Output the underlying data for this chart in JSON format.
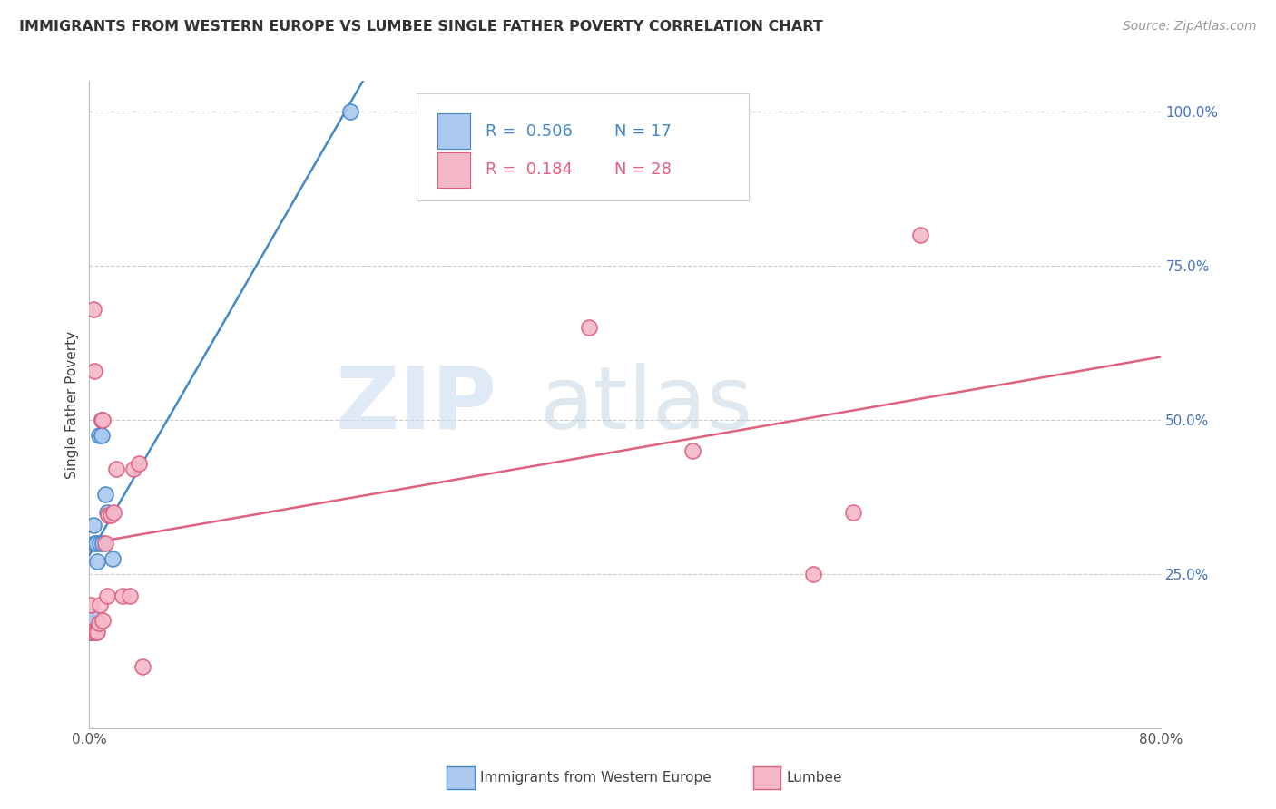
{
  "title": "IMMIGRANTS FROM WESTERN EUROPE VS LUMBEE SINGLE FATHER POVERTY CORRELATION CHART",
  "source": "Source: ZipAtlas.com",
  "ylabel": "Single Father Poverty",
  "legend_label1": "Immigrants from Western Europe",
  "legend_label2": "Lumbee",
  "R1": 0.506,
  "N1": 17,
  "R2": 0.184,
  "N2": 28,
  "color1": "#aac8f0",
  "color2": "#f5b8c8",
  "line_color1": "#4488cc",
  "line_color2": "#e06080",
  "xlim": [
    0.0,
    0.8
  ],
  "ylim": [
    0.0,
    1.05
  ],
  "yticks_right": [
    0.25,
    0.5,
    0.75,
    1.0
  ],
  "ytick_labels_right": [
    "25.0%",
    "50.0%",
    "75.0%",
    "100.0%"
  ],
  "watermark_zip": "ZIP",
  "watermark_atlas": "atlas",
  "blue_x": [
    0.001,
    0.001,
    0.002,
    0.002,
    0.003,
    0.004,
    0.005,
    0.006,
    0.007,
    0.008,
    0.009,
    0.009,
    0.01,
    0.012,
    0.013,
    0.017,
    0.195
  ],
  "blue_y": [
    0.17,
    0.155,
    0.155,
    0.18,
    0.33,
    0.3,
    0.3,
    0.27,
    0.475,
    0.3,
    0.475,
    0.5,
    0.3,
    0.38,
    0.35,
    0.275,
    1.0
  ],
  "pink_x": [
    0.001,
    0.001,
    0.003,
    0.004,
    0.004,
    0.005,
    0.006,
    0.007,
    0.008,
    0.009,
    0.01,
    0.01,
    0.012,
    0.013,
    0.014,
    0.016,
    0.018,
    0.02,
    0.025,
    0.03,
    0.033,
    0.037,
    0.04,
    0.373,
    0.45,
    0.54,
    0.57,
    0.62
  ],
  "pink_y": [
    0.2,
    0.155,
    0.68,
    0.58,
    0.155,
    0.155,
    0.155,
    0.17,
    0.2,
    0.5,
    0.5,
    0.175,
    0.3,
    0.215,
    0.345,
    0.345,
    0.35,
    0.42,
    0.215,
    0.215,
    0.42,
    0.43,
    0.1,
    0.65,
    0.45,
    0.25,
    0.35,
    0.8
  ]
}
